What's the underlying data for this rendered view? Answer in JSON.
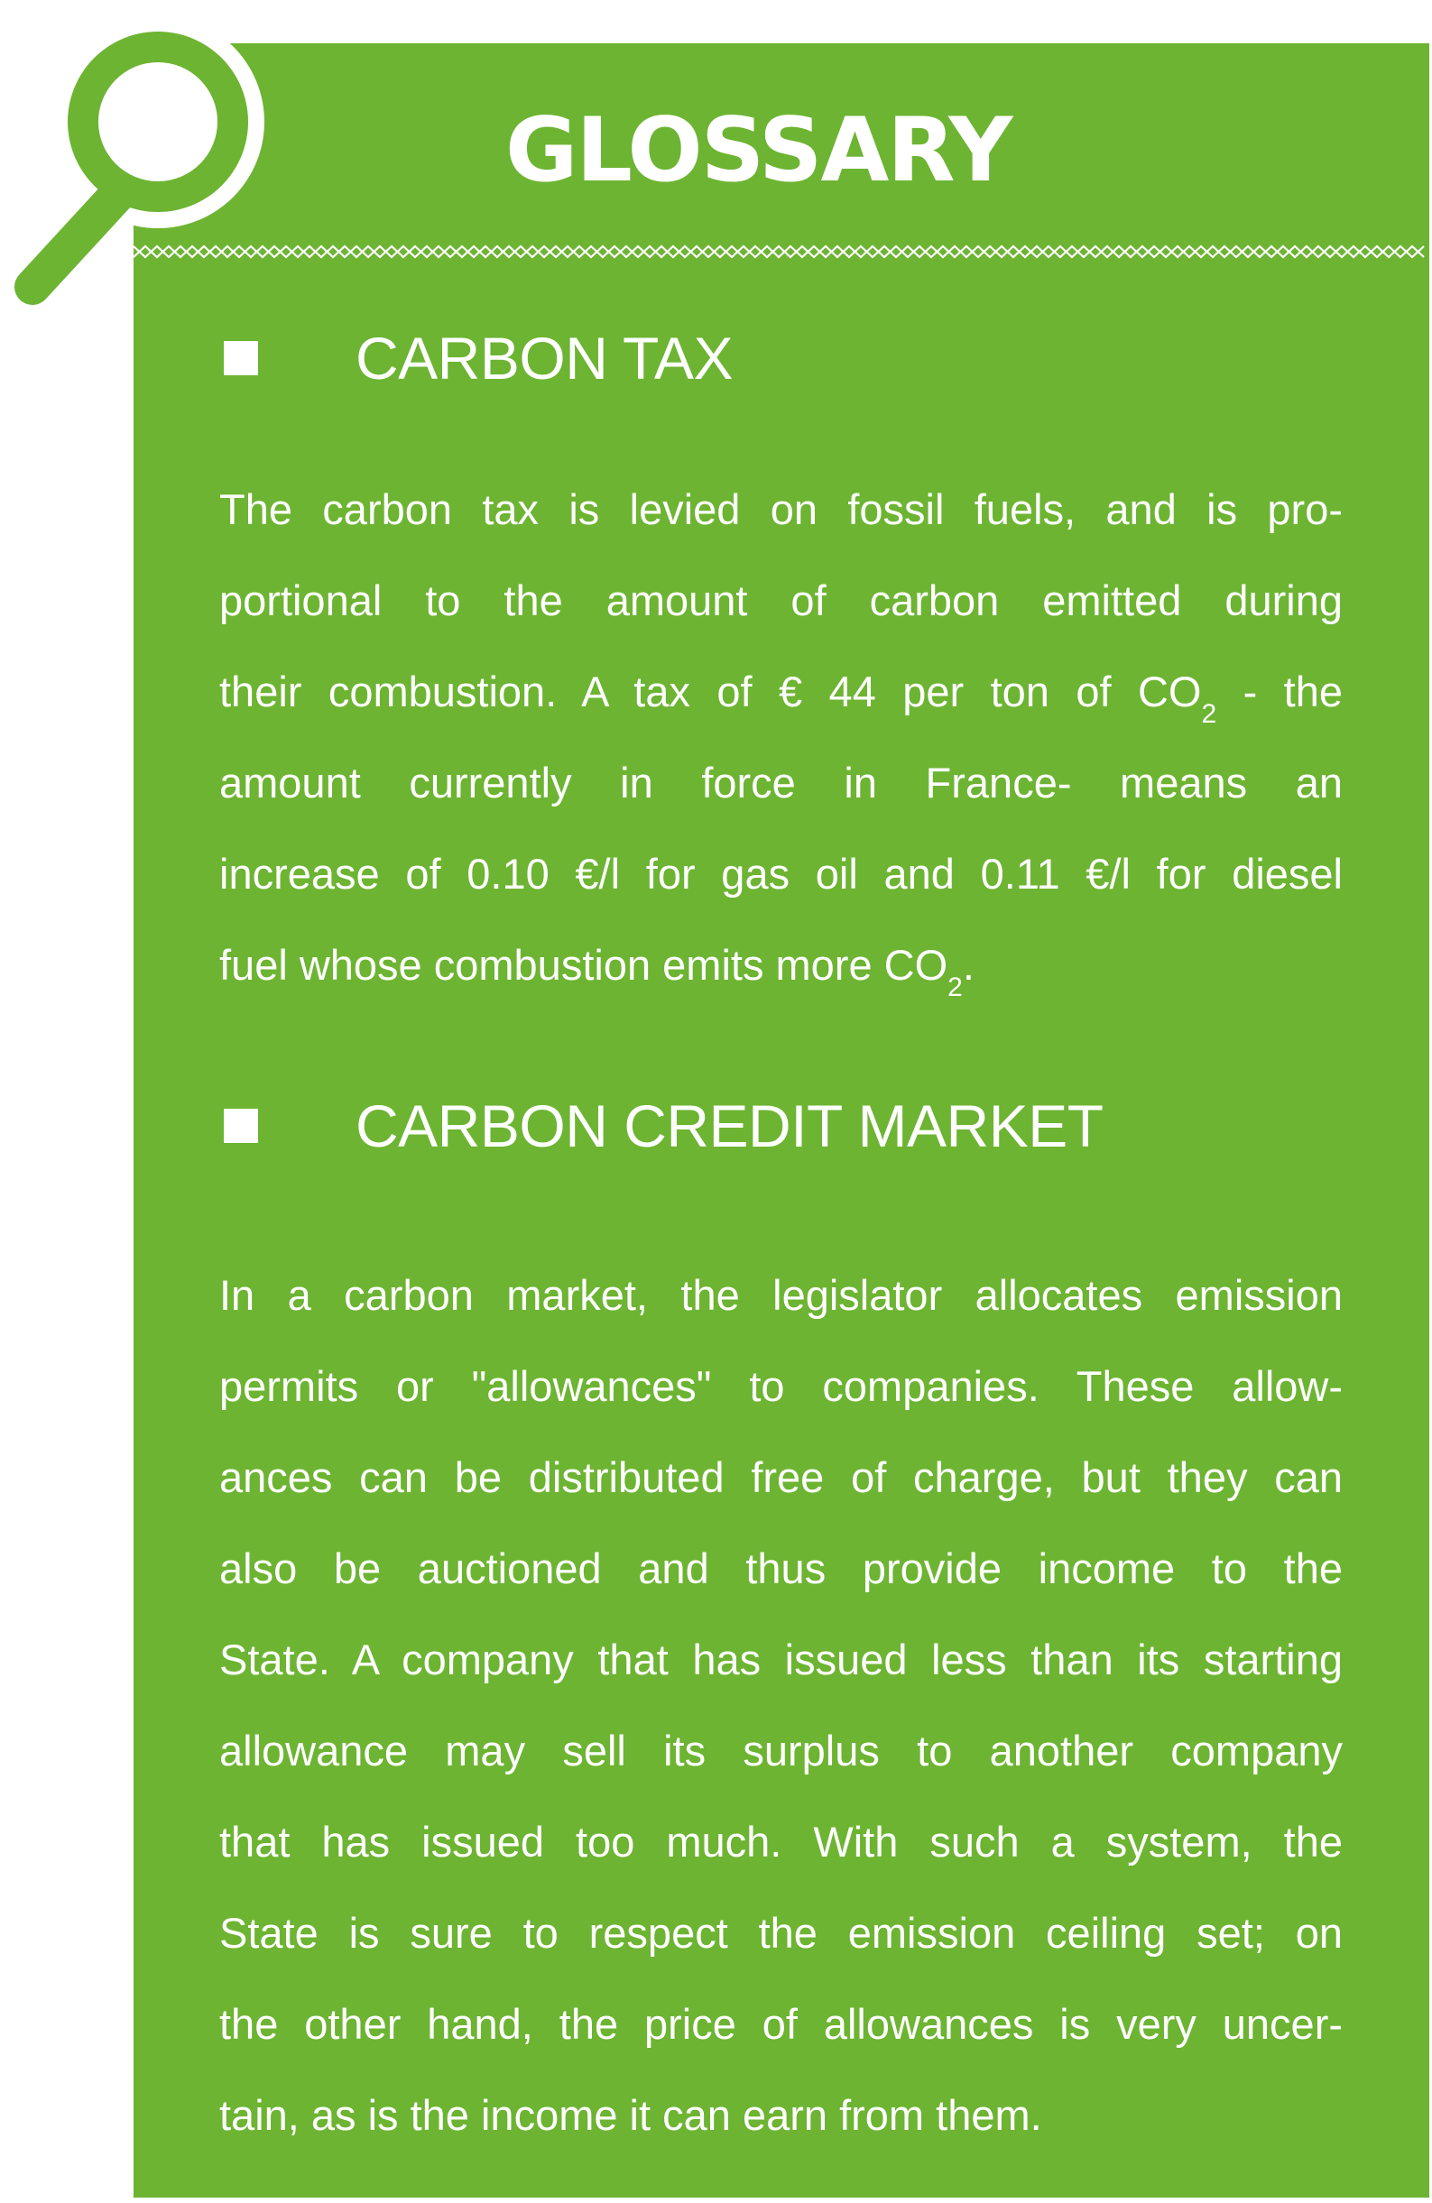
{
  "title": "GLOSSARY",
  "icons": {
    "magnifier": "magnifying-glass-icon",
    "bullet": "square-bullet-icon"
  },
  "colors": {
    "panel": "#6db432",
    "text": "#ffffff"
  },
  "sections": [
    {
      "heading": "CARBON TAX",
      "lines": [
        "The carbon tax is levied on fossil fuels, and is pro-",
        "portional to the amount of carbon emitted during",
        [
          "their combustion. A tax of € 44 per ton of CO",
          "2",
          " - the"
        ],
        "amount currently in force in France- means an",
        "increase of 0.10 €/l for gas oil and 0.11 €/l for diesel",
        [
          "fuel whose combustion emits more CO",
          "2",
          "."
        ]
      ]
    },
    {
      "heading": "CARBON CREDIT MARKET",
      "lines": [
        "In a carbon market, the legislator allocates emission",
        "permits or \"allowances\" to companies. These allow-",
        "ances can be distributed free of charge, but they can",
        "also be auctioned and thus provide income to the",
        "State. A company that has issued less than its starting",
        "allowance may sell its surplus to another company",
        "that has issued too much. With such a system, the",
        "State is sure to respect the emission ceiling set; on",
        "the other hand, the price of allowances is very uncer-",
        "tain, as is the income it can earn from them."
      ]
    }
  ]
}
